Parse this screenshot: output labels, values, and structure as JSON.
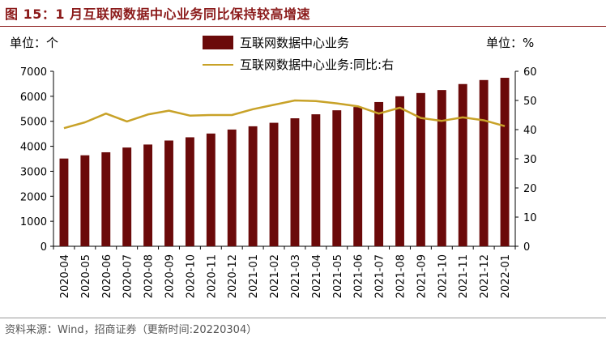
{
  "figure_title": "图 15：1 月互联网数据中心业务同比保持较高增速",
  "source": "资料来源：Wind，招商证券（更新时间:20220304）",
  "units": {
    "left": "单位：个",
    "right": "单位：%"
  },
  "colors": {
    "title": "#8B1A1A",
    "bar": "#6B0A0A",
    "line": "#C8A228"
  },
  "legend": {
    "bar_label": "互联网数据中心业务",
    "line_label": "互联网数据中心业务:同比:右"
  },
  "chart_data": {
    "type": "bar",
    "categories": [
      "2020-04",
      "2020-05",
      "2020-06",
      "2020-07",
      "2020-08",
      "2020-09",
      "2020-10",
      "2020-11",
      "2020-12",
      "2021-01",
      "2021-02",
      "2021-03",
      "2021-04",
      "2021-05",
      "2021-06",
      "2021-07",
      "2021-08",
      "2021-09",
      "2021-10",
      "2021-11",
      "2021-12",
      "2022-01"
    ],
    "series": [
      {
        "name": "互联网数据中心业务",
        "type": "bar",
        "axis": "left",
        "values": [
          3510,
          3640,
          3760,
          3950,
          4070,
          4230,
          4360,
          4510,
          4670,
          4800,
          4940,
          5120,
          5280,
          5440,
          5570,
          5770,
          6000,
          6130,
          6250,
          6490,
          6650,
          6740
        ]
      },
      {
        "name": "互联网数据中心业务:同比:右",
        "type": "line",
        "axis": "right",
        "values": [
          40.5,
          42.5,
          45.5,
          42.8,
          45.2,
          46.5,
          44.8,
          45.0,
          45.0,
          47.0,
          48.5,
          50.0,
          49.8,
          49.0,
          48.0,
          45.5,
          47.5,
          44.0,
          43.0,
          44.2,
          43.2,
          41.2
        ]
      }
    ],
    "ylim": [
      0,
      7000
    ],
    "yticks": [
      0,
      1000,
      2000,
      3000,
      4000,
      5000,
      6000,
      7000
    ],
    "y2lim": [
      0,
      60
    ],
    "y2ticks": [
      0,
      10,
      20,
      30,
      40,
      50,
      60
    ],
    "grid": false,
    "legend_position": "top-center"
  }
}
